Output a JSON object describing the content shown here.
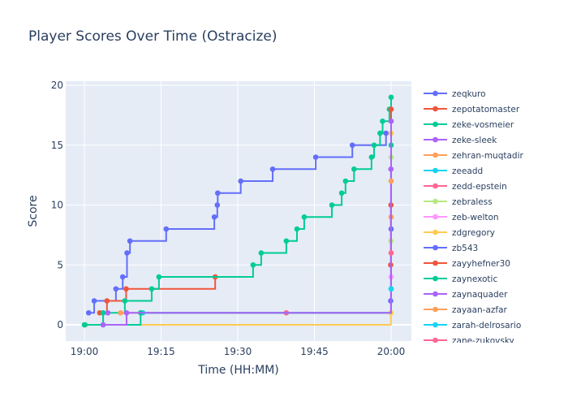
{
  "chart_data": {
    "type": "line",
    "line_shape": "step-hv",
    "title": "Player Scores Over Time (Ostracize)",
    "xlabel": "Time (HH:MM)",
    "ylabel": "Score",
    "x_ticks": [
      "19:00",
      "19:15",
      "19:30",
      "19:45",
      "20:00"
    ],
    "y_ticks": [
      0,
      5,
      10,
      15,
      20
    ],
    "xlim": [
      "18:56:20",
      "21:04:00"
    ],
    "ylim": [
      -1.36,
      20.34
    ],
    "grid": true,
    "legend_placement": "right",
    "series": [
      {
        "name": "zeqkuro",
        "color": "#636efa",
        "points": [
          [
            "19:00:50",
            1
          ],
          [
            "19:01:55",
            2
          ],
          [
            "19:06:10",
            3
          ],
          [
            "19:07:30",
            4
          ],
          [
            "19:08:20",
            6
          ],
          [
            "19:08:55",
            7
          ],
          [
            "19:16:00",
            8
          ],
          [
            "19:25:25",
            9
          ],
          [
            "19:26:00",
            10
          ],
          [
            "19:26:05",
            11
          ],
          [
            "19:30:35",
            12
          ],
          [
            "19:36:50",
            13
          ],
          [
            "19:45:15",
            14
          ],
          [
            "19:52:25",
            15
          ],
          [
            "19:59:00",
            16
          ]
        ]
      },
      {
        "name": "zepotatomaster",
        "color": "#EF553B",
        "points": [
          [
            "19:03:00",
            1
          ],
          [
            "19:04:25",
            2
          ],
          [
            "19:08:10",
            3
          ],
          [
            "19:25:35",
            4
          ]
        ]
      },
      {
        "name": "zeke-vosmeier",
        "color": "#00cc96",
        "points": [
          [
            "19:00:10",
            0
          ],
          [
            "19:03:40",
            1
          ],
          [
            "19:07:55",
            2
          ],
          [
            "19:13:10",
            3
          ],
          [
            "19:14:35",
            4
          ],
          [
            "19:33:00",
            5
          ],
          [
            "19:34:35",
            6
          ],
          [
            "19:39:30",
            7
          ],
          [
            "19:41:35",
            8
          ],
          [
            "19:43:00",
            9
          ],
          [
            "19:48:25",
            10
          ],
          [
            "19:50:20",
            11
          ],
          [
            "19:51:05",
            12
          ],
          [
            "19:52:45",
            13
          ],
          [
            "19:56:10",
            14
          ],
          [
            "19:56:40",
            15
          ],
          [
            "19:57:50",
            16
          ],
          [
            "19:58:20",
            17
          ],
          [
            "19:59:40",
            18
          ],
          [
            "20:00:00",
            19
          ]
        ]
      },
      {
        "name": "zeke-sleek",
        "color": "#ab63fa",
        "points": [
          [
            "19:04:35",
            1
          ]
        ]
      },
      {
        "name": "zehran-muqtadir",
        "color": "#FFA15A",
        "points": [
          [
            "19:07:05",
            1
          ],
          [
            "20:00:00",
            9
          ]
        ]
      },
      {
        "name": "zeeadd",
        "color": "#19d3f3",
        "points": [
          [
            "19:11:25",
            1
          ],
          [
            "20:00:00",
            3
          ]
        ]
      },
      {
        "name": "zedd-epstein",
        "color": "#FF6692",
        "points": [
          [
            "19:39:30",
            1
          ]
        ]
      },
      {
        "name": "zebraless",
        "color": "#B6E880",
        "points": [
          [
            "19:59:58",
            7
          ],
          [
            "20:00:00",
            14
          ]
        ]
      },
      {
        "name": "zeb-welton",
        "color": "#FF97FF",
        "points": [
          [
            "20:00:00",
            4
          ]
        ]
      },
      {
        "name": "zdgregory",
        "color": "#FECB52",
        "points": [
          [
            "19:00:05",
            0
          ],
          [
            "19:59:58",
            1
          ],
          [
            "20:00:00",
            16
          ]
        ]
      },
      {
        "name": "zb543",
        "color": "#636efa",
        "points": [
          [
            "19:59:55",
            2
          ],
          [
            "20:00:00",
            8
          ]
        ]
      },
      {
        "name": "zayyhefner30",
        "color": "#EF553B",
        "points": [
          [
            "19:59:55",
            5
          ],
          [
            "19:59:58",
            10
          ],
          [
            "20:00:00",
            18
          ]
        ]
      },
      {
        "name": "zaynexotic",
        "color": "#00cc96",
        "points": [
          [
            "19:00:00",
            0
          ],
          [
            "19:11:00",
            1
          ],
          [
            "20:00:00",
            15
          ]
        ]
      },
      {
        "name": "zaynaquader",
        "color": "#ab63fa",
        "points": [
          [
            "19:03:40",
            0
          ],
          [
            "19:08:15",
            1
          ],
          [
            "19:59:58",
            13
          ],
          [
            "20:00:00",
            17
          ]
        ]
      },
      {
        "name": "zayaan-azfar",
        "color": "#FFA15A",
        "points": [
          [
            "20:00:00",
            12
          ]
        ]
      },
      {
        "name": "zarah-delrosario",
        "color": "#19d3f3",
        "points": [
          [
            "20:00:00",
            3
          ]
        ]
      },
      {
        "name": "zane-zukovsky",
        "color": "#FF6692",
        "points": [
          [
            "20:00:00",
            6
          ]
        ]
      }
    ]
  }
}
